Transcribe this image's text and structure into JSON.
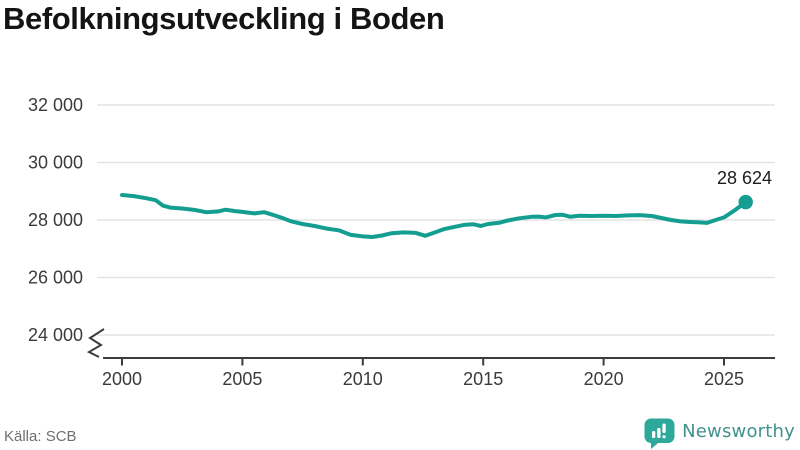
{
  "colors": {
    "line": "#149e91",
    "grid": "#e4e4e4",
    "axis": "#3d3d3d",
    "tick_text": "#3b3b3b",
    "title_text": "#141414",
    "source_text": "#6f6f6f",
    "annotation_text": "#1d1d1d",
    "brand_text": "#41918c",
    "brand_icon": "#2fa89c"
  },
  "branding": {
    "wordmark": "Newsworthy"
  },
  "chart_data": {
    "type": "line",
    "title": "Befolkningsutveckling i Boden",
    "source": "Källa: SCB",
    "xlabel": "",
    "ylabel": "",
    "grid": "horizontal",
    "legend": "none",
    "axis_break": true,
    "xlim": [
      1999.2,
      2027.1
    ],
    "ylim": [
      24000,
      32800
    ],
    "x_ticks": [
      2000,
      2005,
      2010,
      2015,
      2020,
      2025
    ],
    "y_ticks": [
      {
        "value": 32000,
        "label": "32 000"
      },
      {
        "value": 30000,
        "label": "30 000"
      },
      {
        "value": 28000,
        "label": "28 000"
      },
      {
        "value": 26000,
        "label": "26 000"
      },
      {
        "value": 24000,
        "label": "24 000"
      }
    ],
    "series": [
      {
        "color": "#149e91",
        "points": [
          [
            2000.0,
            28870
          ],
          [
            2000.5,
            28830
          ],
          [
            2001.0,
            28760
          ],
          [
            2001.4,
            28690
          ],
          [
            2001.7,
            28500
          ],
          [
            2002.0,
            28430
          ],
          [
            2002.5,
            28400
          ],
          [
            2003.0,
            28350
          ],
          [
            2003.5,
            28270
          ],
          [
            2004.0,
            28300
          ],
          [
            2004.3,
            28360
          ],
          [
            2004.7,
            28310
          ],
          [
            2005.0,
            28280
          ],
          [
            2005.5,
            28230
          ],
          [
            2005.9,
            28270
          ],
          [
            2006.3,
            28170
          ],
          [
            2006.7,
            28060
          ],
          [
            2007.0,
            27960
          ],
          [
            2007.5,
            27860
          ],
          [
            2008.0,
            27790
          ],
          [
            2008.5,
            27700
          ],
          [
            2009.0,
            27640
          ],
          [
            2009.5,
            27480
          ],
          [
            2010.0,
            27430
          ],
          [
            2010.4,
            27410
          ],
          [
            2010.8,
            27460
          ],
          [
            2011.2,
            27540
          ],
          [
            2011.7,
            27570
          ],
          [
            2012.2,
            27550
          ],
          [
            2012.6,
            27450
          ],
          [
            2013.0,
            27570
          ],
          [
            2013.4,
            27690
          ],
          [
            2013.8,
            27760
          ],
          [
            2014.2,
            27830
          ],
          [
            2014.6,
            27850
          ],
          [
            2014.9,
            27790
          ],
          [
            2015.2,
            27860
          ],
          [
            2015.7,
            27910
          ],
          [
            2016.0,
            27980
          ],
          [
            2016.5,
            28060
          ],
          [
            2017.0,
            28110
          ],
          [
            2017.3,
            28120
          ],
          [
            2017.6,
            28090
          ],
          [
            2018.0,
            28175
          ],
          [
            2018.3,
            28180
          ],
          [
            2018.6,
            28115
          ],
          [
            2019.0,
            28150
          ],
          [
            2019.5,
            28140
          ],
          [
            2020.0,
            28150
          ],
          [
            2020.5,
            28140
          ],
          [
            2021.0,
            28160
          ],
          [
            2021.5,
            28170
          ],
          [
            2022.0,
            28140
          ],
          [
            2022.4,
            28070
          ],
          [
            2022.8,
            28000
          ],
          [
            2023.2,
            27950
          ],
          [
            2023.6,
            27930
          ],
          [
            2024.0,
            27915
          ],
          [
            2024.3,
            27900
          ],
          [
            2024.6,
            27985
          ],
          [
            2025.0,
            28090
          ],
          [
            2025.4,
            28310
          ],
          [
            2025.9,
            28624
          ]
        ]
      }
    ],
    "annotation": {
      "label": "28 624",
      "x": 2025.9,
      "y": 28624
    }
  }
}
